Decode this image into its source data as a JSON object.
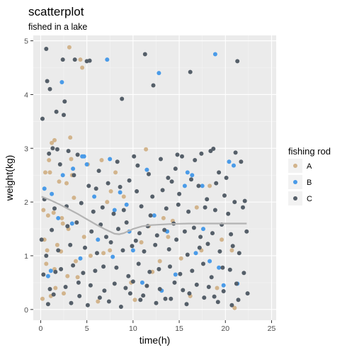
{
  "chart_data": {
    "type": "scatter",
    "title": "scatterplot",
    "subtitle": "fished in a lake",
    "xlabel": "time(h)",
    "ylabel": "weight(kg)",
    "xlim": [
      -0.8,
      25.5
    ],
    "ylim": [
      -0.2,
      5.1
    ],
    "xticks": [
      0,
      5,
      10,
      15,
      20,
      25
    ],
    "yticks": [
      0,
      1,
      2,
      3,
      4,
      5
    ],
    "grid": true,
    "legend": {
      "title": "fishing rod",
      "placement": "right",
      "entries": [
        {
          "name": "A",
          "color": "#d2b48c"
        },
        {
          "name": "B",
          "color": "#4a9be8"
        },
        {
          "name": "C",
          "color": "#555f69"
        }
      ]
    },
    "smooth_color": "#b3b3b3",
    "smooth": {
      "x": [
        0.1,
        1,
        2,
        3,
        4,
        5,
        6,
        7,
        8,
        8.5,
        9,
        10,
        11,
        12,
        14,
        16,
        18,
        20,
        22.3
      ],
      "y": [
        2.1,
        2.04,
        1.96,
        1.87,
        1.78,
        1.68,
        1.58,
        1.49,
        1.41,
        1.4,
        1.42,
        1.5,
        1.55,
        1.57,
        1.59,
        1.6,
        1.6,
        1.6,
        1.6
      ]
    },
    "series": [
      {
        "name": "A",
        "color": "#d2b48c",
        "x": [
          3.1,
          4.3,
          4.5,
          1.2,
          1.5,
          0.9,
          3.2,
          0.5,
          1.0,
          3.3,
          2.0,
          2.8,
          3.6,
          0.3,
          0.8,
          1.4,
          2.3,
          3.0,
          4.7,
          0.4,
          1.8,
          2.2,
          0.6,
          1.5,
          2.9,
          0.2,
          1.1,
          2.5,
          4.0,
          3.8,
          1.6,
          0.7,
          2.4,
          3.4,
          6.6,
          8.1,
          7.6,
          9.0,
          5.4,
          11.4,
          13.3,
          11.7,
          10.9,
          12.9,
          16.9,
          18.3,
          17.4,
          19.6,
          20.7,
          21.0,
          5.1,
          7.2,
          7.5,
          6.8,
          12.1,
          16.2,
          10.2,
          14.3,
          15.2,
          19.1,
          6.2,
          13.8,
          9.8
        ],
        "y": [
          4.88,
          4.65,
          4.5,
          3.1,
          3.15,
          2.78,
          3.2,
          2.55,
          2.55,
          2.8,
          2.38,
          2.35,
          2.08,
          1.85,
          1.75,
          1.8,
          1.7,
          1.5,
          1.35,
          1.3,
          1.2,
          1.08,
          0.85,
          0.75,
          0.62,
          0.2,
          0.25,
          0.3,
          0.6,
          0.9,
          0.4,
          1.1,
          1.6,
          2.5,
          2.78,
          2.55,
          2.2,
          2.1,
          1.0,
          2.98,
          1.7,
          1.55,
          1.25,
          0.9,
          1.9,
          2.3,
          1.1,
          1.3,
          1.1,
          0.03,
          2.7,
          2.0,
          1.1,
          1.05,
          0.7,
          0.25,
          0.18,
          1.65,
          0.95,
          0.4,
          0.15,
          1.35,
          0.5
        ]
      },
      {
        "name": "B",
        "color": "#4a9be8",
        "x": [
          7.2,
          18.9,
          12.8,
          2.3,
          2.4,
          4.5,
          4.7,
          5.0,
          7.5,
          8.6,
          11.5,
          1.2,
          0.4,
          3.5,
          12.3,
          15.6,
          15.9,
          16.4,
          17.5,
          20.4,
          20.9,
          13.7,
          17.6,
          3.4,
          1.1,
          0.8,
          10.0,
          8.0,
          9.3,
          6.2,
          18.3,
          19.3,
          4.3,
          13.1,
          11.0,
          14.6,
          19.8,
          21.3,
          7.8,
          1.9,
          5.8,
          9.6,
          16.8
        ],
        "y": [
          4.65,
          4.75,
          4.4,
          4.23,
          2.5,
          2.85,
          2.85,
          2.7,
          2.8,
          2.18,
          2.6,
          2.15,
          2.25,
          2.62,
          1.75,
          2.3,
          2.55,
          2.5,
          2.3,
          2.75,
          2.68,
          1.45,
          1.5,
          1.6,
          0.72,
          0.62,
          1.1,
          1.85,
          1.95,
          1.3,
          0.9,
          0.78,
          0.95,
          0.35,
          0.5,
          0.65,
          0.45,
          0.48,
          0.98,
          1.7,
          2.1,
          1.45,
          1.05
        ]
      },
      {
        "name": "C",
        "color": "#555f69",
        "x": [
          0.6,
          2.4,
          3.7,
          5.0,
          5.3,
          11.3,
          21.3,
          12.2,
          16.2,
          8.8,
          0.7,
          1.0,
          2.6,
          2.5,
          1.7,
          0.2,
          1.3,
          1.8,
          3.0,
          4.0,
          6.3,
          8.3,
          10.1,
          10.5,
          11.7,
          13.0,
          13.8,
          14.6,
          14.8,
          15.3,
          16.7,
          17.4,
          18.4,
          18.7,
          19.3,
          20.1,
          21.1,
          21.7,
          0.9,
          2.1,
          3.6,
          5.2,
          6.0,
          7.3,
          8.6,
          9.6,
          10.4,
          12.1,
          13.2,
          14.2,
          15.0,
          16.3,
          17.1,
          18.0,
          19.0,
          19.9,
          21.0,
          22.1,
          0.4,
          1.5,
          2.8,
          4.4,
          5.7,
          6.7,
          7.9,
          9.0,
          10.9,
          11.9,
          13.6,
          14.9,
          16.0,
          17.8,
          18.9,
          20.3,
          21.9,
          0.1,
          1.2,
          2.9,
          3.9,
          5.5,
          6.5,
          7.1,
          8.4,
          9.3,
          10.7,
          11.6,
          12.6,
          13.4,
          14.4,
          15.6,
          16.6,
          17.3,
          18.6,
          19.6,
          20.6,
          22.3,
          0.6,
          1.9,
          3.2,
          4.8,
          6.1,
          7.6,
          8.9,
          9.9,
          10.3,
          11.2,
          12.4,
          13.9,
          14.7,
          15.9,
          17.2,
          18.1,
          19.4,
          20.8,
          21.5,
          0.3,
          1.6,
          2.2,
          3.5,
          4.6,
          5.9,
          6.8,
          8.2,
          9.5,
          10.6,
          11.8,
          12.8,
          14.0,
          15.1,
          16.4,
          17.6,
          18.5,
          19.7,
          20.5,
          22.0,
          1.0,
          2.7,
          4.1,
          5.4,
          6.9,
          8.0,
          9.2,
          10.0,
          11.5,
          12.9,
          14.5,
          15.4,
          16.9,
          18.2,
          19.8,
          21.2,
          0.8,
          3.3,
          5.1,
          7.4,
          8.7,
          10.8,
          12.5,
          14.1,
          15.8,
          17.7,
          19.2,
          20.7,
          22.4,
          1.4,
          4.2,
          6.4,
          9.7,
          11.1,
          13.5,
          16.1,
          18.8,
          21.4
        ],
        "y": [
          4.85,
          4.65,
          4.65,
          4.62,
          4.63,
          4.75,
          4.62,
          4.17,
          4.42,
          3.92,
          4.25,
          4.1,
          3.87,
          3.62,
          3.68,
          3.55,
          3.0,
          2.98,
          2.95,
          2.88,
          2.58,
          2.75,
          2.85,
          2.68,
          2.52,
          2.8,
          2.45,
          2.62,
          2.88,
          2.85,
          2.78,
          2.9,
          2.95,
          2.99,
          2.55,
          2.45,
          2.92,
          2.75,
          2.9,
          2.7,
          2.5,
          2.3,
          2.25,
          2.35,
          2.28,
          2.4,
          2.2,
          2.1,
          2.22,
          2.38,
          2.15,
          2.42,
          2.3,
          2.05,
          2.35,
          2.12,
          2.0,
          2.02,
          2.05,
          1.88,
          1.92,
          1.98,
          1.82,
          1.9,
          1.78,
          1.85,
          1.92,
          1.75,
          1.88,
          1.95,
          1.82,
          1.9,
          1.85,
          1.78,
          1.9,
          1.3,
          1.48,
          1.55,
          1.62,
          1.45,
          1.58,
          1.35,
          1.5,
          1.62,
          1.42,
          1.55,
          1.38,
          1.48,
          1.6,
          1.45,
          1.52,
          1.35,
          1.42,
          1.58,
          1.4,
          1.45,
          1.0,
          1.1,
          1.2,
          1.15,
          1.05,
          1.25,
          1.1,
          1.18,
          1.28,
          1.08,
          1.2,
          1.12,
          1.3,
          1.02,
          1.15,
          1.22,
          1.08,
          1.18,
          1.05,
          0.65,
          0.7,
          0.75,
          0.82,
          0.68,
          0.72,
          0.8,
          0.78,
          0.62,
          0.85,
          0.7,
          0.75,
          0.8,
          0.66,
          0.72,
          0.85,
          0.6,
          0.78,
          0.74,
          0.68,
          0.38,
          0.42,
          0.5,
          0.45,
          0.35,
          0.48,
          0.4,
          0.52,
          0.44,
          0.38,
          0.5,
          0.36,
          0.46,
          0.42,
          0.34,
          0.48,
          0.1,
          0.12,
          0.08,
          0.15,
          0.05,
          0.18,
          0.12,
          0.2,
          0.1,
          0.22,
          0.14,
          0.08,
          0.3,
          0.28,
          0.25,
          0.22,
          0.3,
          0.26,
          0.2,
          0.3,
          0.24,
          0.18
        ]
      }
    ]
  }
}
